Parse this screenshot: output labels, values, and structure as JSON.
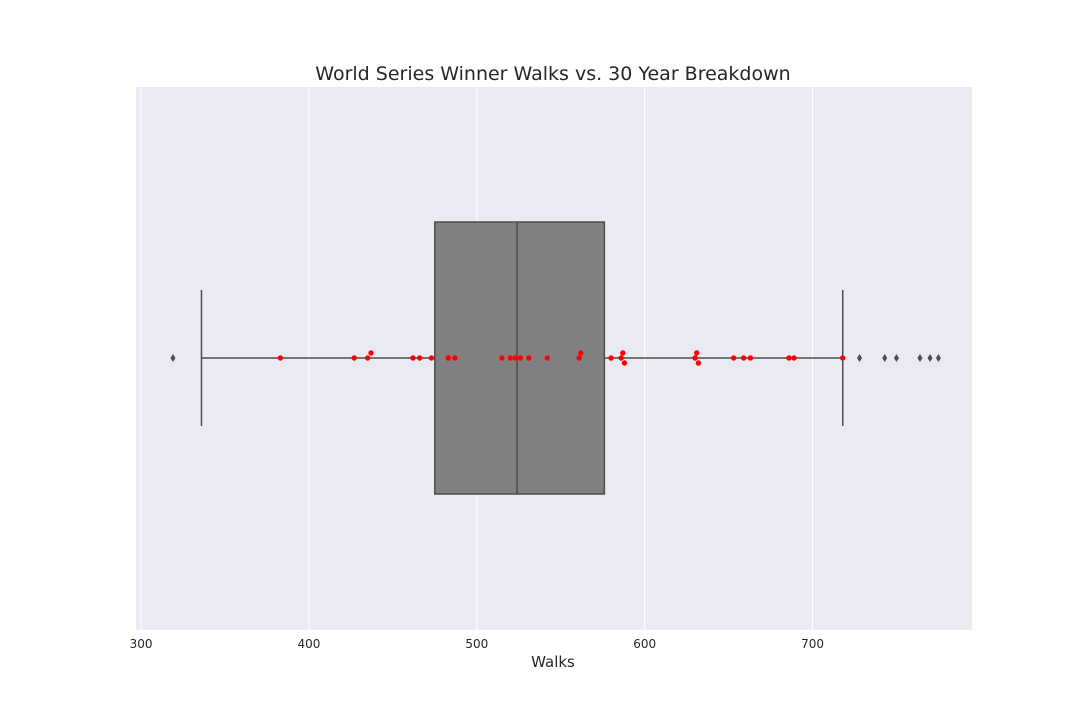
{
  "chart_data": {
    "type": "box",
    "title": "World Series Winner Walks vs. 30 Year Breakdown",
    "xlabel": "Walks",
    "ylabel": "",
    "xlim": [
      297,
      795
    ],
    "xticks": [
      300,
      400,
      500,
      600,
      700
    ],
    "grid": true,
    "box": {
      "whisker_low": 336,
      "q1": 475,
      "median": 524,
      "q3": 576,
      "whisker_high": 718,
      "outliers": [
        319,
        728,
        743,
        750,
        764,
        770,
        775
      ]
    },
    "points": [
      383,
      427,
      435,
      437,
      462,
      466,
      473,
      483,
      487,
      515,
      520,
      523,
      526,
      531,
      542,
      561,
      562,
      580,
      586,
      587,
      588,
      630,
      631,
      632,
      653,
      659,
      663,
      686,
      689,
      718
    ],
    "colors": {
      "background": "#eaeaf2",
      "grid": "#ffffff",
      "box": "#808080",
      "line": "#4d4d4d",
      "points": "#ff0000"
    }
  }
}
